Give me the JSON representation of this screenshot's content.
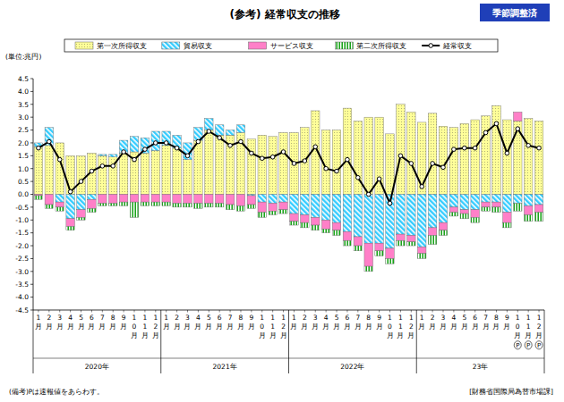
{
  "chart_data": {
    "type": "bar",
    "stacked": true,
    "title": "(参考) 経常収支の推移",
    "badge": "季節調整済",
    "y_label": "(単位:兆円)",
    "notes": "(備考)Pは速報値をあらわす。",
    "source": "[財務省国際局為替市場課]",
    "legend": "top",
    "grid": false,
    "ylim": [
      -4.5,
      4.5
    ],
    "yticks": [
      4.5,
      {
        "value": 4,
        "label": "4.0"
      },
      3.5,
      {
        "value": 3,
        "label": "3.0"
      },
      2.5,
      {
        "value": 2,
        "label": "2.0"
      },
      1.5,
      {
        "value": 1,
        "label": "1.0"
      },
      0.5,
      {
        "value": 0,
        "label": "0.0"
      },
      -0.5,
      {
        "value": -1,
        "label": "-1.0"
      },
      -1.5,
      {
        "value": -2,
        "label": "-2.0"
      },
      -2.5,
      {
        "value": -3,
        "label": "-3.0"
      },
      -3.5,
      {
        "value": -4,
        "label": "-4.0"
      },
      -4.5
    ],
    "categories": [
      "1月",
      "2月",
      "3月",
      "4月",
      "5月",
      "6月",
      "7月",
      "8月",
      "9月",
      "10月",
      "11月",
      "12月",
      "1月",
      "2月",
      "3月",
      "4月",
      "5月",
      "6月",
      "7月",
      "8月",
      "9月",
      "10月",
      "11月",
      "12月",
      "1月",
      "2月",
      "3月",
      "4月",
      "5月",
      "6月",
      "7月",
      "8月",
      "9月",
      "10月",
      "11月",
      "12月",
      "1月",
      "2月",
      "3月",
      "4月",
      "5月",
      "6月",
      "7月",
      "8月",
      "9月",
      "10月",
      "11月",
      "12月"
    ],
    "category_notes": [
      null,
      null,
      null,
      null,
      null,
      null,
      null,
      null,
      null,
      null,
      null,
      null,
      null,
      null,
      null,
      null,
      null,
      null,
      null,
      null,
      null,
      null,
      null,
      null,
      null,
      null,
      null,
      null,
      null,
      null,
      null,
      null,
      null,
      null,
      null,
      null,
      null,
      null,
      null,
      null,
      null,
      null,
      null,
      null,
      null,
      "P",
      "P",
      "P"
    ],
    "x_groups": [
      "2020年",
      "2021年",
      "2022年",
      "23年"
    ],
    "series": [
      {
        "name": "第一次所得収支",
        "type": "bar",
        "color": "#ffff99",
        "values": [
          1.85,
          1.9,
          2.0,
          1.5,
          1.5,
          1.6,
          1.5,
          1.45,
          1.6,
          1.65,
          1.6,
          1.7,
          1.9,
          1.8,
          1.35,
          2.1,
          2.5,
          2.3,
          2.3,
          2.4,
          2.15,
          2.3,
          2.25,
          2.4,
          2.4,
          2.6,
          3.25,
          2.5,
          2.5,
          3.35,
          2.85,
          3.0,
          3.0,
          2.35,
          3.5,
          3.2,
          2.8,
          3.15,
          2.65,
          2.6,
          2.75,
          2.9,
          3.05,
          3.45,
          2.9,
          2.85,
          2.95,
          2.85
        ]
      },
      {
        "name": "貿易収支",
        "type": "bar",
        "color": "#33ccff",
        "values": [
          0.15,
          0.7,
          -0.3,
          -0.95,
          -0.6,
          -0.2,
          0.05,
          0.1,
          0.5,
          0.6,
          0.6,
          0.75,
          0.55,
          0.5,
          0.65,
          0.5,
          0.45,
          0.4,
          0.2,
          0.3,
          -0.05,
          -0.3,
          -0.35,
          -0.3,
          -0.75,
          -0.8,
          -0.9,
          -1.0,
          -1.1,
          -1.45,
          -1.65,
          -1.9,
          -1.9,
          -2.1,
          -1.55,
          -1.6,
          -2.05,
          -1.3,
          -1.1,
          -0.5,
          -0.6,
          -0.6,
          -0.3,
          -0.3,
          -0.7,
          -0.35,
          -0.45,
          -0.4
        ]
      },
      {
        "name": "サービス収支",
        "type": "bar",
        "color": "#ff80c8",
        "values": [
          -0.05,
          -0.4,
          -0.2,
          -0.3,
          -0.3,
          -0.35,
          -0.35,
          -0.35,
          -0.3,
          -0.3,
          -0.3,
          -0.3,
          -0.3,
          -0.35,
          -0.35,
          -0.35,
          -0.35,
          -0.35,
          -0.4,
          -0.45,
          -0.35,
          -0.4,
          -0.3,
          -0.3,
          -0.3,
          -0.3,
          -0.3,
          -0.35,
          -0.3,
          -0.35,
          -0.35,
          -0.9,
          -0.3,
          -0.4,
          -0.25,
          -0.25,
          -0.25,
          -0.3,
          -0.3,
          -0.2,
          -0.15,
          -0.3,
          -0.2,
          -0.2,
          -0.4,
          0.35,
          -0.35,
          -0.3
        ]
      },
      {
        "name": "第二次所得収支",
        "type": "bar",
        "color": "#009a00",
        "values": [
          -0.15,
          -0.15,
          -0.15,
          -0.15,
          -0.1,
          -0.15,
          -0.1,
          -0.1,
          -0.15,
          -0.6,
          -0.15,
          -0.15,
          -0.15,
          -0.15,
          -0.15,
          -0.2,
          -0.15,
          -0.15,
          -0.2,
          -0.2,
          -0.15,
          -0.2,
          -0.15,
          -0.15,
          -0.15,
          -0.2,
          -0.2,
          -0.15,
          -0.2,
          -0.2,
          -0.2,
          -0.2,
          -0.2,
          -0.2,
          -0.2,
          -0.15,
          -0.2,
          -0.35,
          -0.2,
          -0.15,
          -0.2,
          -0.2,
          -0.15,
          -0.2,
          -0.2,
          -0.3,
          -0.25,
          -0.35
        ]
      },
      {
        "name": "経常収支",
        "type": "line",
        "color": "#000000",
        "marker": "circle",
        "line_style": "solid",
        "values": [
          1.8,
          2.05,
          1.35,
          0.1,
          0.5,
          0.9,
          1.1,
          1.1,
          1.65,
          1.35,
          1.75,
          2.0,
          2.0,
          1.8,
          1.5,
          2.05,
          2.45,
          2.2,
          1.9,
          2.05,
          1.6,
          1.4,
          1.45,
          1.65,
          1.2,
          1.3,
          1.85,
          1.0,
          0.9,
          1.35,
          0.65,
          0.0,
          0.6,
          -0.35,
          1.5,
          1.2,
          0.3,
          1.2,
          1.05,
          1.75,
          1.8,
          1.8,
          2.4,
          2.75,
          1.6,
          2.55,
          1.9,
          1.8
        ]
      }
    ]
  }
}
